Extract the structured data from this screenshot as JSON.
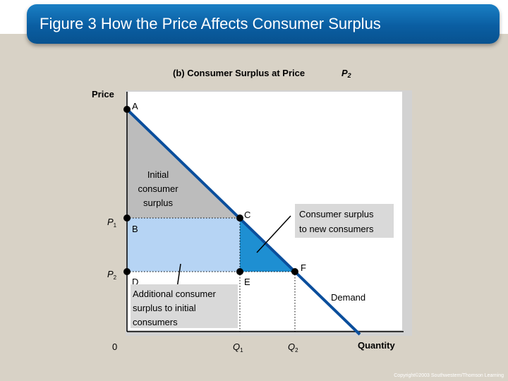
{
  "title": "Figure 3 How the Price Affects Consumer Surplus",
  "subtitle_prefix": "(b) Consumer Surplus at Price",
  "subtitle_price": "P",
  "subtitle_sub": "2",
  "axis": {
    "y_label": "Price",
    "x_label": "Quantity",
    "origin": "0"
  },
  "price_labels": [
    {
      "symbol": "P",
      "sub": "1"
    },
    {
      "symbol": "P",
      "sub": "2"
    }
  ],
  "quantity_labels": [
    {
      "symbol": "Q",
      "sub": "1"
    },
    {
      "symbol": "Q",
      "sub": "2"
    }
  ],
  "points": {
    "A": "A",
    "B": "B",
    "C": "C",
    "D": "D",
    "E": "E",
    "F": "F"
  },
  "region_initial": [
    "Initial",
    "consumer",
    "surplus"
  ],
  "callout_new": [
    "Consumer surplus",
    "to new consumers"
  ],
  "callout_additional": [
    "Additional consumer",
    "surplus to initial",
    "consumers"
  ],
  "demand_label": "Demand",
  "copyright": "Copyright©2003  Southwestern/Thomson Learning",
  "colors": {
    "demand_line": "#0a4e9c",
    "initial_surplus": "#bcbcbc",
    "additional_surplus": "#b6d4f4",
    "new_surplus": "#1e8fd2"
  }
}
